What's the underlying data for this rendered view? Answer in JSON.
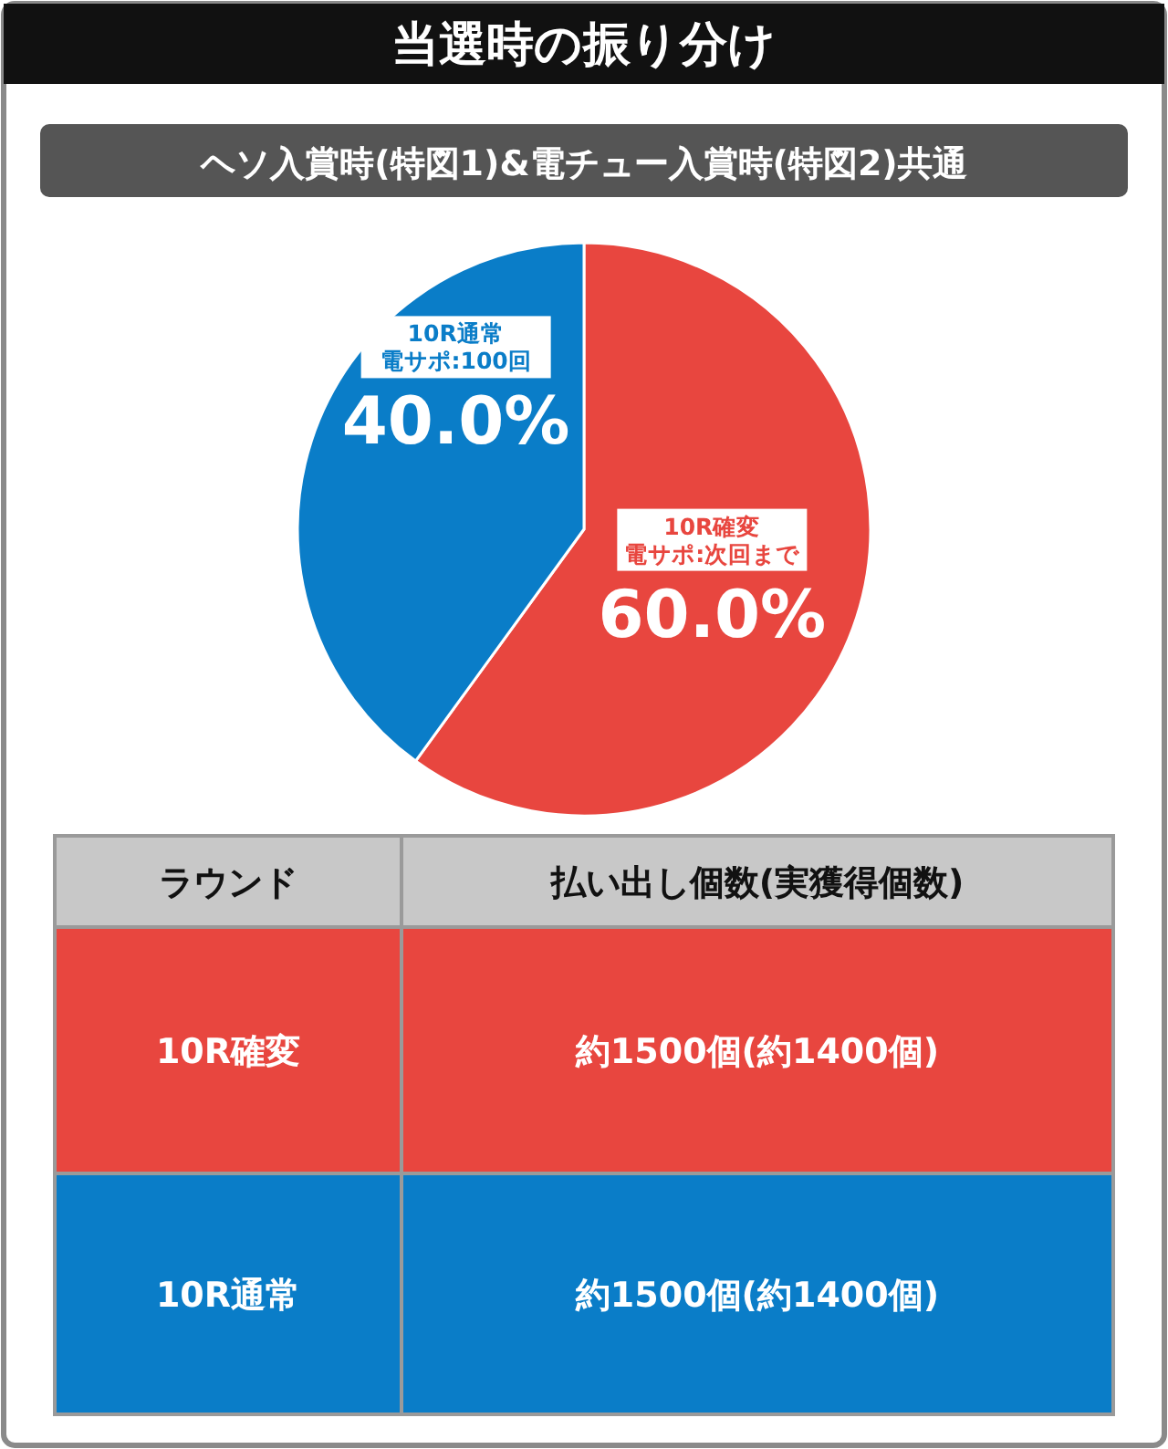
{
  "chart_data": [
    {
      "type": "pie",
      "title": "当選時の振り分け",
      "subtitle": "ヘソ入賞時(特図1)&電チュー入賞時(特図2)共通",
      "categories": [
        "10R確変",
        "10R通常"
      ],
      "annotations": [
        {
          "text": "電サポ:次回まで",
          "x": "10R確変"
        },
        {
          "text": "電サポ:100回",
          "x": "10R通常"
        }
      ],
      "values": [
        60,
        40
      ],
      "colors": [
        "#e8463f",
        "#0a7dc8"
      ],
      "value_labels": [
        "60.0%",
        "40.0%"
      ]
    },
    {
      "type": "other",
      "annotations": [
        "ラウンド",
        "払い出し個数(実獲得個数)",
        "10R確変",
        "約1500個(約1400個)",
        "10R通常",
        "約1500個(約1400個)"
      ],
      "colors": [
        "#c8c8c8",
        "#e8463f",
        "#0a7dc8"
      ]
    }
  ]
}
